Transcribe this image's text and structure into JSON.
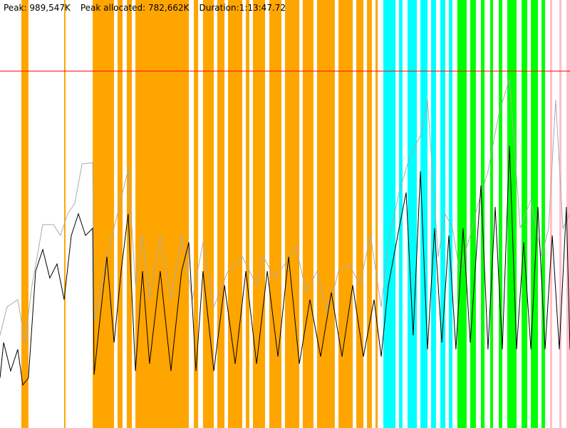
{
  "header": {
    "peak": "Peak: 989,547K",
    "peak_allocated": "Peak allocated: 782,662K",
    "duration": "Duration:1:13:47.72"
  },
  "chart_data": {
    "type": "line",
    "title": "",
    "xlabel": "",
    "ylabel": "",
    "x_unit": "seconds elapsed",
    "y_unit": "K",
    "xlim": [
      0,
      4428
    ],
    "ylim": [
      0,
      1187000
    ],
    "grid": false,
    "peak_line": {
      "value": 989547,
      "color": "#ff0000"
    },
    "colors": {
      "orange": "#ffa500",
      "cyan": "#00ffff",
      "green": "#00ff00",
      "pink": "#ffc0cb",
      "allocated": "#aaaaaa",
      "used": "#000000"
    },
    "bands": [
      {
        "color": "orange",
        "ranges": [
          [
            166,
            221
          ],
          [
            498,
            509
          ],
          [
            720,
            886
          ],
          [
            913,
            952
          ],
          [
            985,
            1024
          ],
          [
            1052,
            1467
          ],
          [
            1506,
            1539
          ],
          [
            1577,
            1661
          ],
          [
            1688,
            1744
          ],
          [
            1771,
            1882
          ],
          [
            1910,
            1937
          ],
          [
            1965,
            2059
          ],
          [
            2092,
            2186
          ],
          [
            2214,
            2325
          ],
          [
            2352,
            2435
          ],
          [
            2463,
            2601
          ],
          [
            2629,
            2740
          ],
          [
            2768,
            2823
          ],
          [
            2851,
            2889
          ],
          [
            2917,
            2934
          ]
        ]
      },
      {
        "color": "cyan",
        "ranges": [
          [
            2978,
            3072
          ],
          [
            3100,
            3127
          ],
          [
            3166,
            3238
          ],
          [
            3266,
            3321
          ],
          [
            3349,
            3387
          ],
          [
            3421,
            3459
          ],
          [
            3487,
            3515
          ]
        ]
      },
      {
        "color": "green",
        "ranges": [
          [
            3553,
            3625
          ],
          [
            3653,
            3697
          ],
          [
            3736,
            3764
          ],
          [
            3808,
            3830
          ],
          [
            3875,
            3902
          ],
          [
            3941,
            4013
          ],
          [
            4052,
            4096
          ],
          [
            4124,
            4179
          ],
          [
            4207,
            4234
          ]
        ]
      },
      {
        "color": "pink",
        "ranges": [
          [
            4273,
            4290
          ],
          [
            4345,
            4362
          ],
          [
            4400,
            4428
          ]
        ]
      }
    ],
    "series": [
      {
        "color": "allocated",
        "points": [
          [
            0,
            257000
          ],
          [
            55,
            336000
          ],
          [
            138,
            356000
          ],
          [
            194,
            237000
          ],
          [
            249,
            396000
          ],
          [
            332,
            564000
          ],
          [
            415,
            564000
          ],
          [
            470,
            534000
          ],
          [
            526,
            594000
          ],
          [
            581,
            623000
          ],
          [
            637,
            732000
          ],
          [
            720,
            736000
          ],
          [
            731,
            297000
          ],
          [
            830,
            475000
          ],
          [
            913,
            594000
          ],
          [
            996,
            718000
          ],
          [
            1052,
            396000
          ],
          [
            1107,
            534000
          ],
          [
            1162,
            356000
          ],
          [
            1245,
            534000
          ],
          [
            1328,
            356000
          ],
          [
            1411,
            534000
          ],
          [
            1494,
            356000
          ],
          [
            1577,
            515000
          ],
          [
            1661,
            336000
          ],
          [
            1771,
            435000
          ],
          [
            1882,
            475000
          ],
          [
            1993,
            396000
          ],
          [
            2048,
            475000
          ],
          [
            2131,
            416000
          ],
          [
            2214,
            455000
          ],
          [
            2297,
            505000
          ],
          [
            2380,
            376000
          ],
          [
            2463,
            435000
          ],
          [
            2546,
            317000
          ],
          [
            2629,
            435000
          ],
          [
            2712,
            455000
          ],
          [
            2795,
            396000
          ],
          [
            2878,
            534000
          ],
          [
            2961,
            336000
          ],
          [
            3017,
            515000
          ],
          [
            3100,
            653000
          ],
          [
            3183,
            752000
          ],
          [
            3266,
            811000
          ],
          [
            3321,
            910000
          ],
          [
            3404,
            475000
          ],
          [
            3459,
            594000
          ],
          [
            3515,
            554000
          ],
          [
            3570,
            435000
          ],
          [
            3653,
            534000
          ],
          [
            3708,
            613000
          ],
          [
            3791,
            712000
          ],
          [
            3875,
            871000
          ],
          [
            3958,
            970000
          ],
          [
            4041,
            554000
          ],
          [
            4124,
            633000
          ],
          [
            4207,
            475000
          ],
          [
            4262,
            554000
          ],
          [
            4317,
            910000
          ],
          [
            4373,
            554000
          ],
          [
            4428,
            594000
          ]
        ]
      },
      {
        "color": "used",
        "points": [
          [
            0,
            139000
          ],
          [
            28,
            237000
          ],
          [
            83,
            158000
          ],
          [
            138,
            218000
          ],
          [
            177,
            119000
          ],
          [
            221,
            139000
          ],
          [
            277,
            435000
          ],
          [
            332,
            495000
          ],
          [
            387,
            416000
          ],
          [
            443,
            455000
          ],
          [
            498,
            356000
          ],
          [
            554,
            534000
          ],
          [
            609,
            594000
          ],
          [
            664,
            534000
          ],
          [
            720,
            554000
          ],
          [
            731,
            148000
          ],
          [
            775,
            297000
          ],
          [
            830,
            475000
          ],
          [
            886,
            237000
          ],
          [
            941,
            435000
          ],
          [
            996,
            594000
          ],
          [
            1052,
            158000
          ],
          [
            1107,
            435000
          ],
          [
            1162,
            178000
          ],
          [
            1245,
            435000
          ],
          [
            1328,
            158000
          ],
          [
            1411,
            435000
          ],
          [
            1467,
            515000
          ],
          [
            1522,
            158000
          ],
          [
            1577,
            435000
          ],
          [
            1661,
            158000
          ],
          [
            1744,
            396000
          ],
          [
            1827,
            178000
          ],
          [
            1910,
            435000
          ],
          [
            1993,
            178000
          ],
          [
            2076,
            435000
          ],
          [
            2159,
            198000
          ],
          [
            2242,
            475000
          ],
          [
            2325,
            178000
          ],
          [
            2408,
            356000
          ],
          [
            2491,
            198000
          ],
          [
            2574,
            376000
          ],
          [
            2657,
            198000
          ],
          [
            2740,
            396000
          ],
          [
            2823,
            198000
          ],
          [
            2906,
            356000
          ],
          [
            2961,
            198000
          ],
          [
            3017,
            396000
          ],
          [
            3100,
            554000
          ],
          [
            3155,
            653000
          ],
          [
            3210,
            257000
          ],
          [
            3266,
            712000
          ],
          [
            3321,
            218000
          ],
          [
            3376,
            554000
          ],
          [
            3432,
            237000
          ],
          [
            3487,
            534000
          ],
          [
            3542,
            218000
          ],
          [
            3598,
            554000
          ],
          [
            3653,
            237000
          ],
          [
            3736,
            673000
          ],
          [
            3791,
            218000
          ],
          [
            3847,
            613000
          ],
          [
            3902,
            218000
          ],
          [
            3958,
            782000
          ],
          [
            4013,
            218000
          ],
          [
            4068,
            515000
          ],
          [
            4124,
            218000
          ],
          [
            4179,
            613000
          ],
          [
            4234,
            218000
          ],
          [
            4290,
            534000
          ],
          [
            4345,
            218000
          ],
          [
            4400,
            613000
          ],
          [
            4428,
            218000
          ]
        ]
      }
    ]
  }
}
